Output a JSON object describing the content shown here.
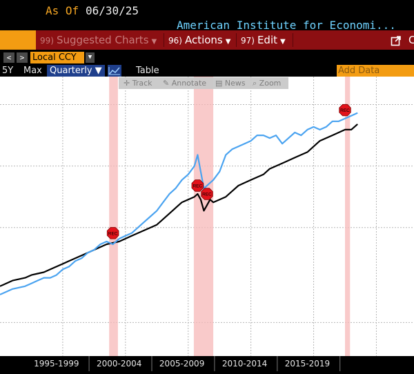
{
  "header": {
    "asof_label": "As Of",
    "asof_date": "06/30/25",
    "title": "American Institute for Economi..."
  },
  "menu": {
    "suggested_num": "99)",
    "suggested": "Suggested Charts",
    "actions_num": "96)",
    "actions": "Actions",
    "edit_num": "97)",
    "edit": "Edit",
    "right_letter": "C"
  },
  "nav": {
    "prev": "<",
    "next": ">",
    "currency": "Local CCY"
  },
  "range": {
    "r5y": "5Y",
    "max": "Max",
    "period": "Quarterly",
    "table": "Table",
    "add_data": "Add Data"
  },
  "toolbar": {
    "track": "Track",
    "annotate": "Annotate",
    "news": "News",
    "zoom": "Zoom"
  },
  "icons": [
    "chevron-left-icon",
    "chevron-right-icon",
    "line-chart-icon",
    "crosshair-icon",
    "pencil-icon",
    "news-icon",
    "zoom-icon",
    "popout-icon"
  ],
  "colors": {
    "accent_orange": "#f39c12",
    "menu_red": "#8c0f12",
    "recession_shade": "#f7b8b8",
    "series_blue": "#4aa3f0",
    "series_black": "#000000",
    "rec_marker": "#e3121b"
  },
  "chart_data": {
    "type": "line",
    "x_tick_labels": [
      "1995-1999",
      "2000-2004",
      "2005-2009",
      "2010-2014",
      "2015-2019"
    ],
    "x_range": [
      1992.5,
      2025.5
    ],
    "y_range": [
      0,
      100
    ],
    "grid": true,
    "recession_periods": [
      [
        2001.2,
        2001.9
      ],
      [
        2007.95,
        2009.5
      ],
      [
        2020.0,
        2020.4
      ]
    ],
    "recession_marker_label": "REC",
    "series": [
      {
        "x": [
          1992.5,
          1993,
          1993.5,
          1994,
          1994.5,
          1995,
          1995.5,
          1996,
          1996.5,
          1997,
          1997.5,
          1998,
          1998.5,
          1999,
          1999.5,
          2000,
          2000.5,
          2001,
          2001.5,
          2002,
          2002.5,
          2003,
          2003.5,
          2004,
          2004.5,
          2005,
          2005.5,
          2006,
          2006.5,
          2007,
          2007.5,
          2008,
          2008.25,
          2008.5,
          2008.75,
          2009,
          2009.25,
          2009.5,
          2010,
          2010.5,
          2011,
          2011.5,
          2012,
          2012.5,
          2013,
          2013.5,
          2014,
          2014.5,
          2015,
          2015.5,
          2016,
          2016.5,
          2017,
          2017.5,
          2018,
          2018.5,
          2019,
          2019.5,
          2020,
          2020.5,
          2021
        ],
        "y": [
          25,
          26,
          27,
          27.5,
          28,
          29,
          29.5,
          30,
          31,
          32,
          33,
          34,
          35,
          36,
          37,
          38,
          39,
          40,
          40.5,
          41,
          42,
          43,
          44,
          45,
          46,
          47,
          49,
          51,
          53,
          55,
          56,
          57,
          58,
          56,
          52,
          54,
          56,
          55,
          56,
          57,
          59,
          61,
          62,
          63,
          64,
          65,
          67,
          68,
          69,
          70,
          71,
          72,
          73,
          75,
          77,
          78,
          79,
          80,
          81,
          81,
          83
        ]
      },
      {
        "x": [
          1992.5,
          1993,
          1993.5,
          1994,
          1994.5,
          1995,
          1995.5,
          1996,
          1996.5,
          1997,
          1997.5,
          1998,
          1998.5,
          1999,
          1999.5,
          2000,
          2000.5,
          2001,
          2001.5,
          2002,
          2002.5,
          2003,
          2003.5,
          2004,
          2004.5,
          2005,
          2005.5,
          2006,
          2006.5,
          2007,
          2007.5,
          2008,
          2008.25,
          2008.5,
          2008.75,
          2009,
          2009.25,
          2009.5,
          2010,
          2010.5,
          2011,
          2011.5,
          2012,
          2012.5,
          2013,
          2013.5,
          2014,
          2014.5,
          2015,
          2015.5,
          2016,
          2016.5,
          2017,
          2017.5,
          2018,
          2018.5,
          2019,
          2019.5,
          2020,
          2020.5,
          2021
        ],
        "y": [
          22,
          23,
          24,
          24.5,
          25,
          26,
          27,
          28,
          28,
          29,
          31,
          32,
          34,
          35,
          37,
          38,
          40,
          41,
          40,
          42,
          43,
          44,
          46,
          48,
          50,
          52,
          55,
          58,
          60,
          63,
          65,
          68,
          72,
          66,
          60,
          61,
          62,
          63,
          66,
          72,
          74,
          75,
          76,
          77,
          79,
          79,
          78,
          79,
          76,
          78,
          80,
          79,
          81,
          82,
          81,
          82,
          84,
          84,
          85,
          86,
          87
        ]
      }
    ]
  }
}
